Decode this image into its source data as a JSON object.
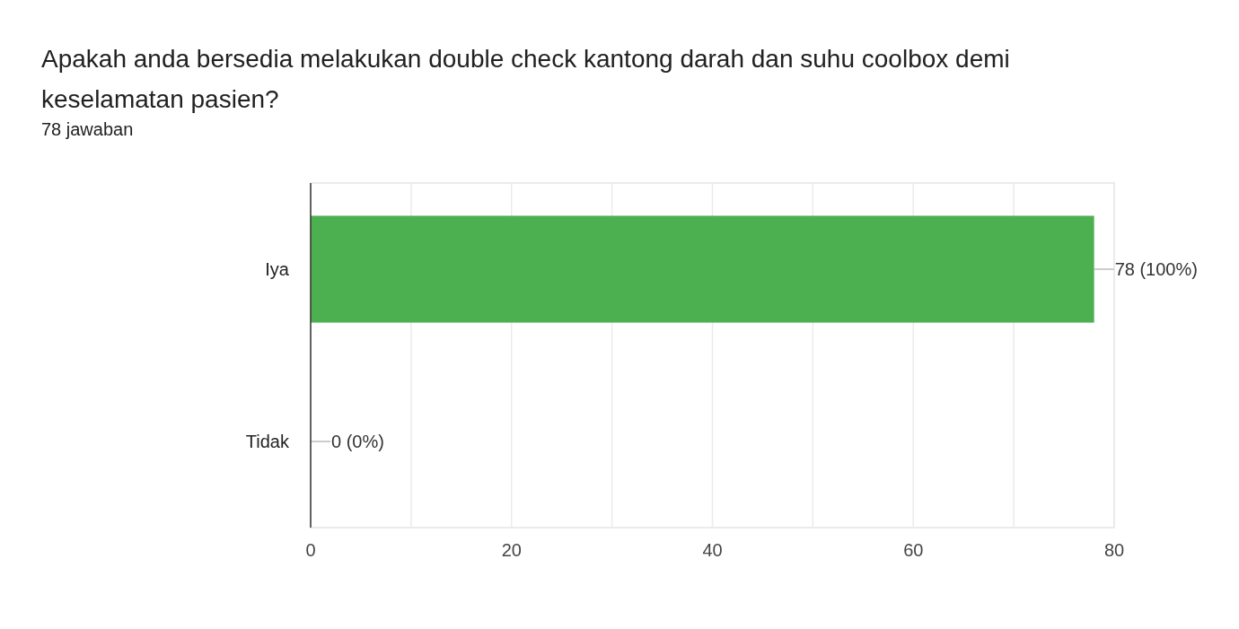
{
  "chart_data": {
    "type": "bar",
    "orientation": "horizontal",
    "title": "Apakah anda bersedia melakukan double check kantong darah dan suhu coolbox demi keselamatan pasien?",
    "subtitle": "78 jawaban",
    "categories": [
      "Iya",
      "Tidak"
    ],
    "values": [
      78,
      0
    ],
    "value_labels": [
      "78 (100%)",
      "0 (0%)"
    ],
    "color": "#4caf50",
    "xlim": [
      0,
      80
    ],
    "xticks": [
      0,
      {
        "value": 10,
        "label": null
      },
      20,
      {
        "value": 30,
        "label": null
      },
      40,
      {
        "value": 50,
        "label": null
      },
      60,
      {
        "value": 70,
        "label": null
      },
      80
    ],
    "grid": "x"
  }
}
